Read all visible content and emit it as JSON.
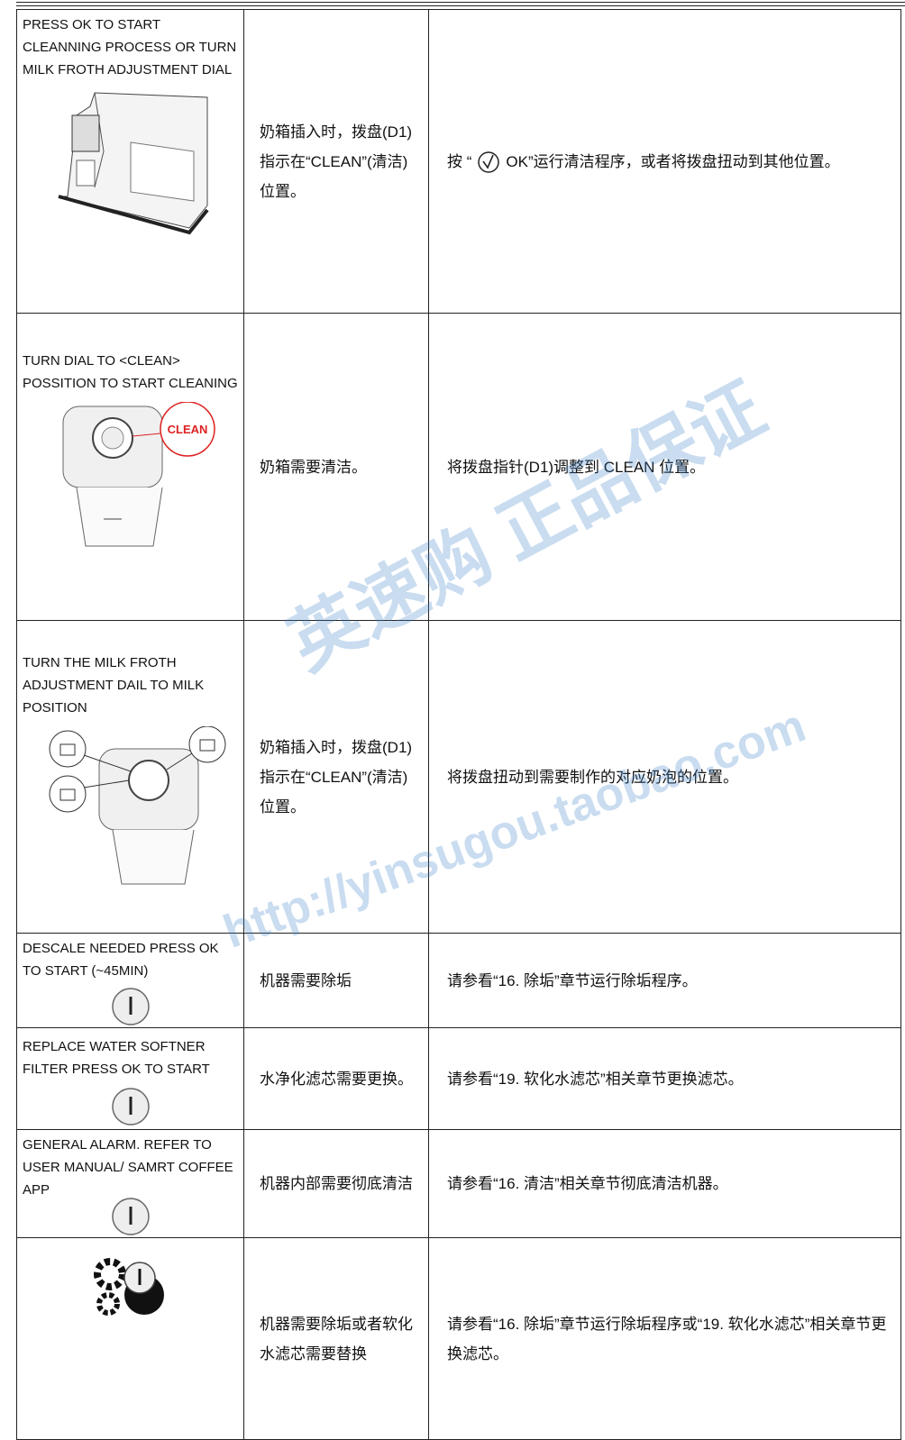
{
  "table": {
    "rows": [
      {
        "message": "PRESS OK TO START CLEANNING PROCESS OR TURN MILK FROTH ADJUSTMENT DIAL",
        "condition": "奶箱插入时，拨盘(D1)指示在“CLEAN”(清洁)位置。",
        "action_before": "按 “",
        "action_after": "OK”运行清洁程序，或者将拨盘扭动到其他位置。"
      },
      {
        "message": "TURN DIAL TO <CLEAN> POSSITION TO START CLEANING",
        "image_label": "CLEAN",
        "condition": "奶箱需要清洁。",
        "action": "将拨盘指针(D1)调整到 CLEAN 位置。"
      },
      {
        "message": "TURN THE MILK FROTH ADJUSTMENT DAIL TO MILK POSITION",
        "condition": "奶箱插入时，拨盘(D1)指示在“CLEAN”(清洁)位置。",
        "action": "将拨盘扭动到需要制作的对应奶泡的位置。"
      },
      {
        "message": "DESCALE NEEDED PRESS OK TO START (~45MIN)",
        "condition": "机器需要除垢",
        "action": "请参看“16. 除垢”章节运行除垢程序。"
      },
      {
        "message": "REPLACE WATER SOFTNER FILTER PRESS OK TO START",
        "condition": "水净化滤芯需要更换。",
        "action": "请参看“19. 软化水滤芯”相关章节更换滤芯。"
      },
      {
        "message": "GENERAL ALARM. REFER TO USER MANUAL/ SAMRT COFFEE APP",
        "condition": "机器内部需要彻底清洁",
        "action": "请参看“16. 清洁”相关章节彻底清洁机器。"
      },
      {
        "condition": "机器需要除垢或者软化水滤芯需要替换",
        "action": "请参看“16. 除垢”章节运行除垢程序或“19. 软化水滤芯”相关章节更换滤芯。"
      }
    ]
  },
  "watermark": {
    "brand": "英速购 正品保证",
    "url": "http://yinsugou.taobao.com"
  }
}
